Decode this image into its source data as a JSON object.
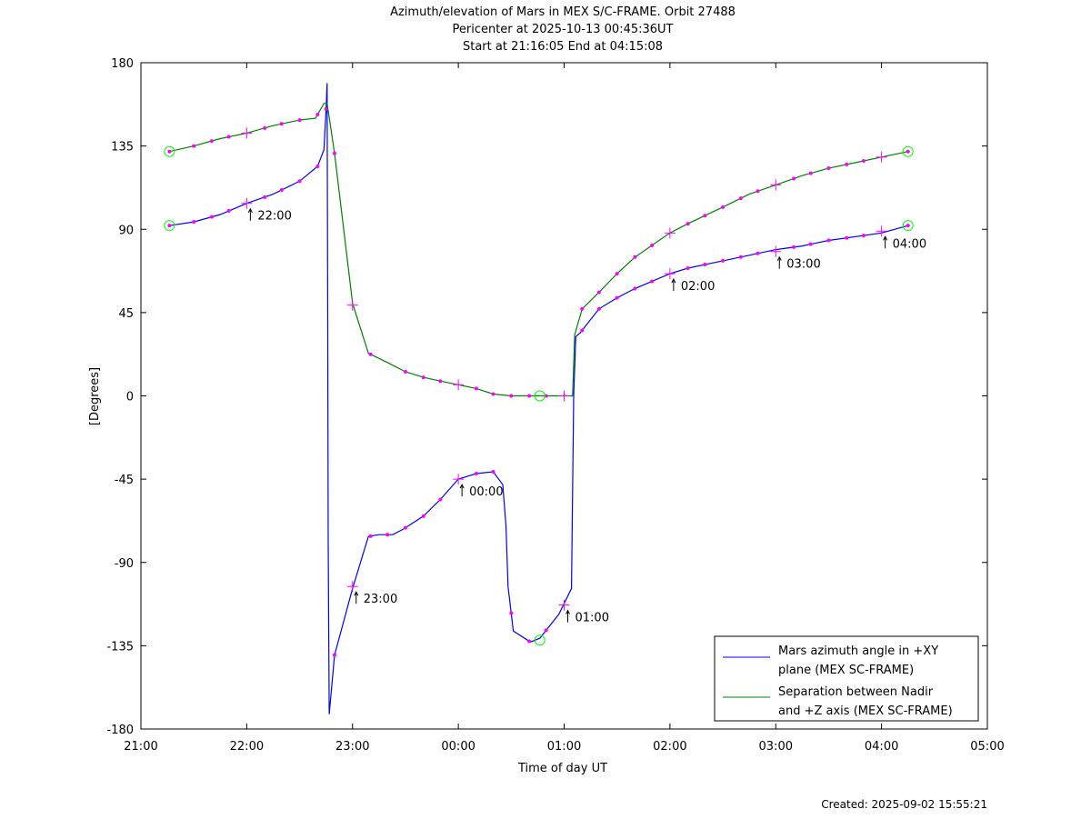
{
  "chart_data": {
    "type": "line",
    "title_lines": [
      "Azimuth/elevation of Mars in MEX S/C-FRAME.  Orbit 27488",
      "Pericenter at 2025-10-13 00:45:36UT",
      "Start at 21:16:05 End at 04:15:08"
    ],
    "xlabel": "Time of day UT",
    "ylabel": "[Degrees]",
    "created": "Created: 2025-09-02 15:55:21",
    "xlim": [
      -3,
      5
    ],
    "ylim": [
      -180,
      180
    ],
    "x_ticks": [
      {
        "v": -3,
        "label": "21:00"
      },
      {
        "v": -2,
        "label": "22:00"
      },
      {
        "v": -1,
        "label": "23:00"
      },
      {
        "v": 0,
        "label": "00:00"
      },
      {
        "v": 1,
        "label": "01:00"
      },
      {
        "v": 2,
        "label": "02:00"
      },
      {
        "v": 3,
        "label": "03:00"
      },
      {
        "v": 4,
        "label": "04:00"
      },
      {
        "v": 5,
        "label": "05:00"
      }
    ],
    "y_ticks": [
      {
        "v": 180,
        "label": "180"
      },
      {
        "v": 135,
        "label": "135"
      },
      {
        "v": 90,
        "label": "90"
      },
      {
        "v": 45,
        "label": "45"
      },
      {
        "v": 0,
        "label": "0"
      },
      {
        "v": -45,
        "label": "-45"
      },
      {
        "v": -90,
        "label": "-90"
      },
      {
        "v": -135,
        "label": "-135"
      },
      {
        "v": -180,
        "label": "-180"
      }
    ],
    "colors": {
      "azimuth": "#0000ff",
      "separation": "#008000",
      "marker": "#ff00ff",
      "endpoint": "#00ff00"
    },
    "series": [
      {
        "name": "Mars azimuth angle in +XY plane (MEX SC-FRAME)",
        "legend_lines": [
          "Mars azimuth angle in +XY",
          "plane (MEX SC-FRAME)"
        ],
        "color": "#0000ff",
        "x": [
          -2.73,
          -2.5,
          -2.25,
          -2.0,
          -1.75,
          -1.5,
          -1.33,
          -1.27,
          -1.25,
          -1.24,
          -1.235,
          -1.23,
          -1.22,
          -1.17,
          -1.0,
          -0.85,
          -0.75,
          -0.62,
          -0.52,
          -0.33,
          -0.17,
          0.0,
          0.17,
          0.33,
          0.42,
          0.45,
          0.47,
          0.52,
          0.68,
          0.77,
          0.95,
          1.07,
          1.09,
          1.11,
          1.15,
          1.33,
          1.5,
          1.67,
          2.0,
          2.17,
          2.5,
          2.75,
          3.0,
          3.25,
          3.5,
          4.0,
          4.25
        ],
        "y": [
          92,
          94,
          98,
          104,
          109,
          116,
          124,
          133,
          155,
          169,
          50,
          -80,
          -172,
          -140,
          -104,
          -76,
          -75,
          -75,
          -72,
          -65,
          -56,
          -45,
          -42,
          -41,
          -48,
          -70,
          -103,
          -127,
          -133,
          -131,
          -118,
          -104,
          0,
          32,
          34,
          47,
          53,
          58,
          66,
          69,
          73,
          76,
          79,
          81,
          84,
          88,
          92
        ],
        "time_markers": [
          {
            "x": -2.0,
            "y": 104,
            "label": "22:00"
          },
          {
            "x": -1.0,
            "y": -103,
            "label": "23:00"
          },
          {
            "x": 0.0,
            "y": -45,
            "label": "00:00"
          },
          {
            "x": 1.0,
            "y": -113,
            "label": "01:00"
          },
          {
            "x": 2.0,
            "y": 66,
            "label": "02:00"
          },
          {
            "x": 3.0,
            "y": 78,
            "label": "03:00"
          },
          {
            "x": 4.0,
            "y": 89,
            "label": "04:00"
          }
        ],
        "dots_x": [
          -2.73,
          -2.5,
          -2.33,
          -2.17,
          -1.83,
          -1.67,
          -1.5,
          -1.25,
          -1.33,
          -1.17,
          -0.83,
          -0.67,
          -0.5,
          -0.33,
          -0.17,
          0.17,
          0.33,
          0.5,
          0.67,
          0.83,
          1.17,
          1.33,
          1.5,
          1.67,
          1.83,
          2.17,
          2.33,
          2.5,
          2.67,
          2.83,
          3.17,
          3.33,
          3.5,
          3.67,
          3.83,
          4.25
        ],
        "endpoints": [
          [
            -2.73,
            92
          ],
          [
            4.25,
            92
          ],
          [
            0.77,
            -132
          ]
        ]
      },
      {
        "name": "Separation between Nadir and +Z axis (MEX SC-FRAME)",
        "legend_lines": [
          "Separation between Nadir",
          "and +Z axis (MEX SC-FRAME)"
        ],
        "color": "#008000",
        "x": [
          -2.73,
          -2.5,
          -2.25,
          -2.0,
          -1.75,
          -1.5,
          -1.35,
          -1.27,
          -1.24,
          -1.17,
          -1.0,
          -0.85,
          -0.67,
          -0.5,
          -0.33,
          -0.17,
          0.0,
          0.17,
          0.33,
          0.5,
          0.67,
          0.77,
          0.9,
          1.0,
          1.08,
          1.1,
          1.17,
          1.33,
          1.5,
          1.67,
          2.0,
          2.17,
          2.5,
          2.75,
          3.0,
          3.25,
          3.5,
          3.75,
          4.0,
          4.25
        ],
        "y": [
          132,
          135,
          139,
          142,
          146,
          149,
          150,
          158,
          158,
          131,
          50,
          23,
          18,
          13,
          10,
          8,
          6,
          4,
          1,
          0,
          0,
          0,
          0,
          0,
          0,
          33,
          47,
          56,
          66,
          75,
          88,
          93,
          102,
          109,
          114,
          119,
          123,
          126,
          129,
          132
        ],
        "time_markers": [
          {
            "x": -2.0,
            "y": 142
          },
          {
            "x": -1.0,
            "y": 49
          },
          {
            "x": 0.0,
            "y": 6
          },
          {
            "x": 1.0,
            "y": 0
          },
          {
            "x": 2.0,
            "y": 88
          },
          {
            "x": 3.0,
            "y": 114
          },
          {
            "x": 4.0,
            "y": 129
          }
        ],
        "dots_x": [
          -2.73,
          -2.5,
          -2.33,
          -2.17,
          -1.83,
          -1.67,
          -1.5,
          -1.33,
          -1.17,
          -0.83,
          -0.5,
          -0.33,
          -0.17,
          0.17,
          0.33,
          0.5,
          0.67,
          0.83,
          1.17,
          1.33,
          1.5,
          1.67,
          1.83,
          2.17,
          2.33,
          2.5,
          2.67,
          2.83,
          3.17,
          3.33,
          3.5,
          3.67,
          3.83,
          4.25
        ],
        "endpoints": [
          [
            -2.73,
            132
          ],
          [
            4.25,
            132
          ],
          [
            0.77,
            0
          ]
        ]
      }
    ]
  }
}
